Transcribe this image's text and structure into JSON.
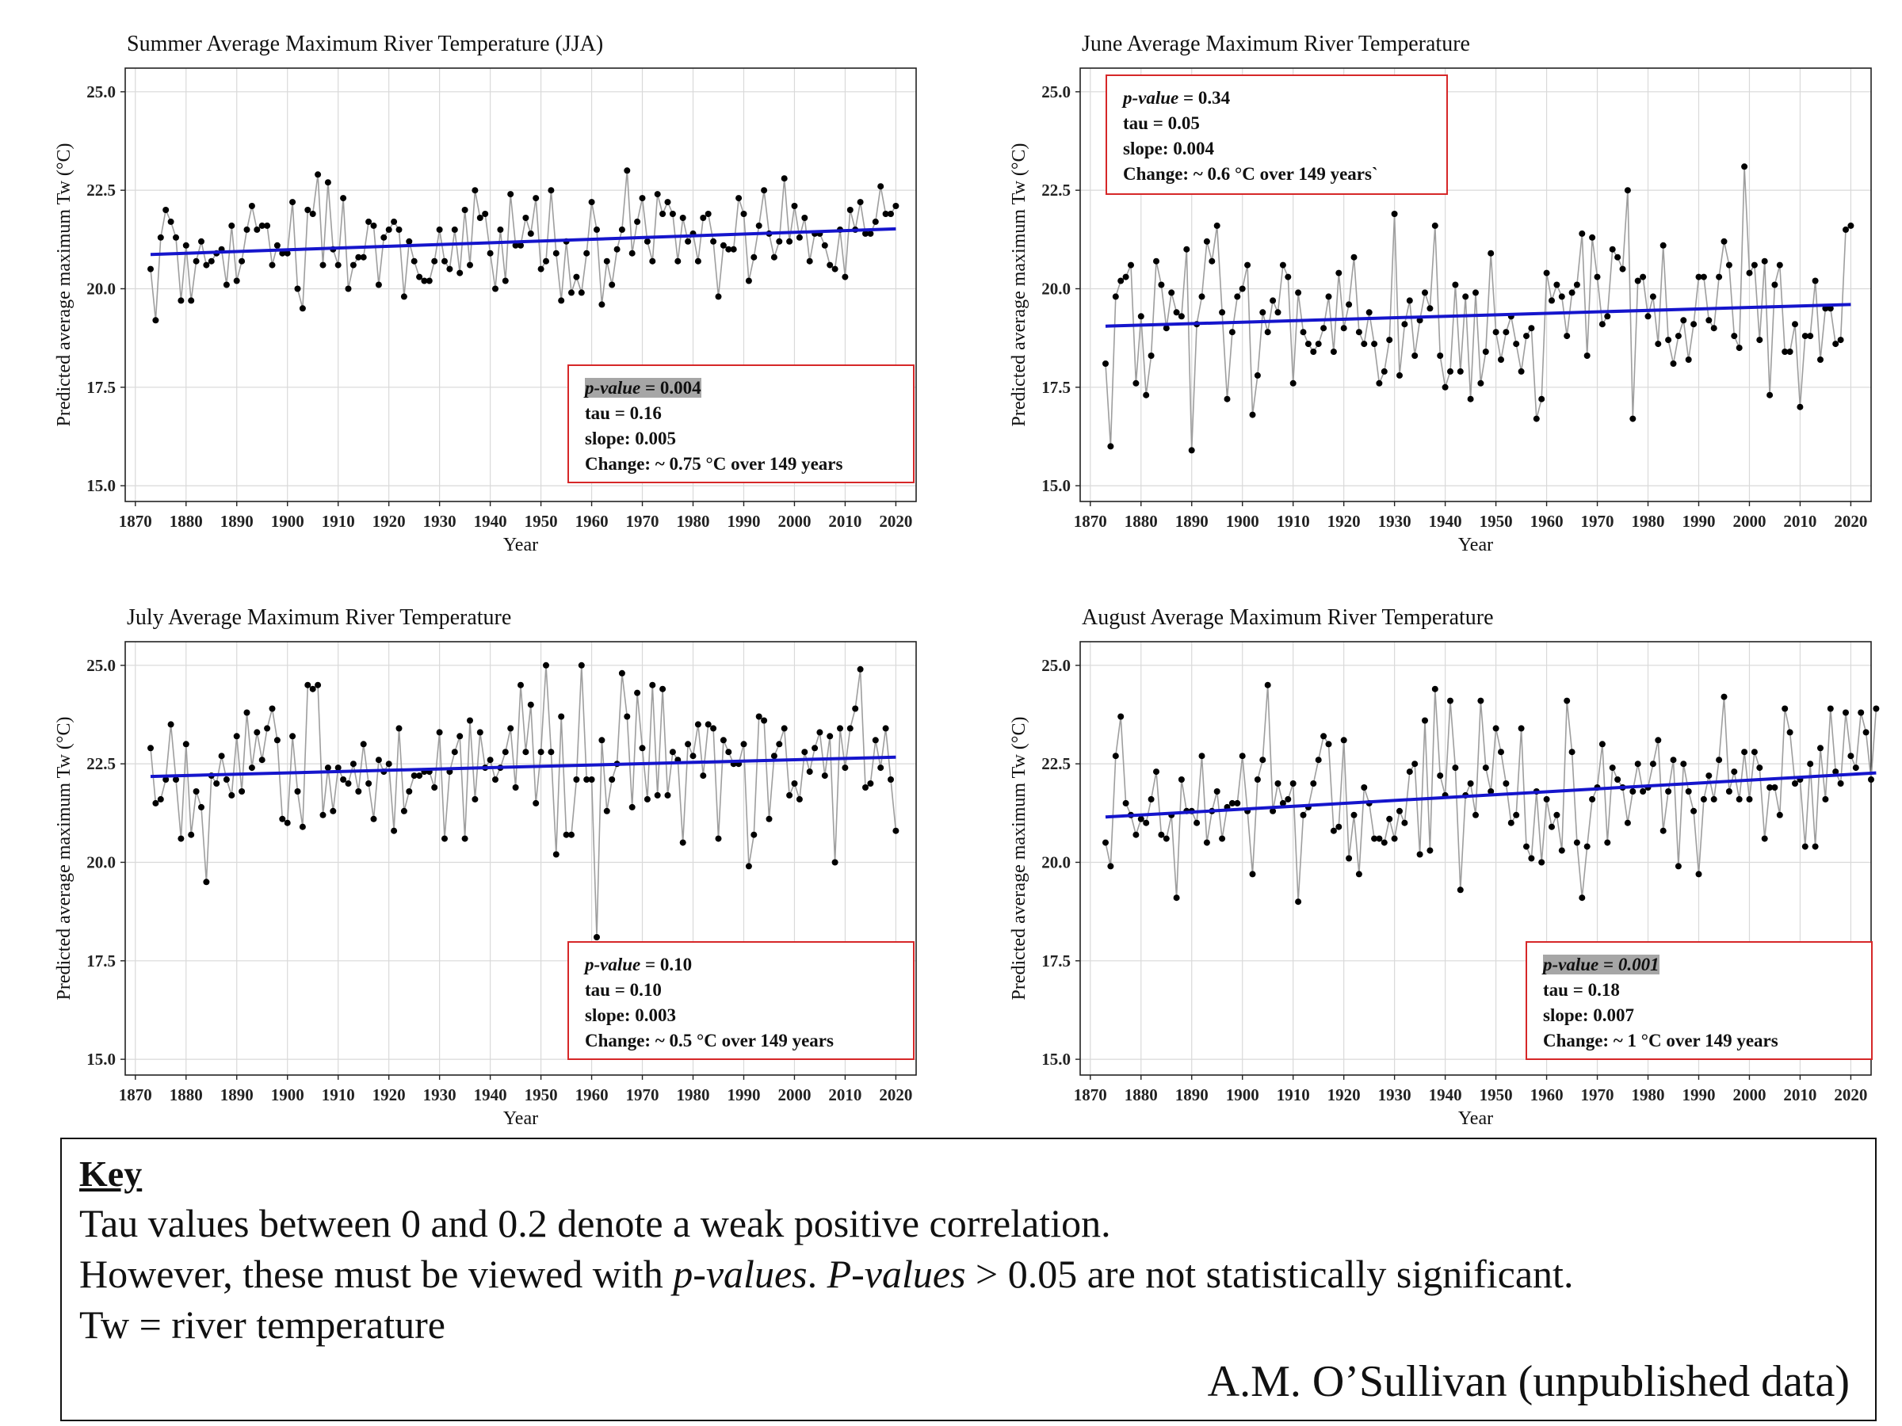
{
  "chart_data": [
    {
      "type": "line",
      "title": "Summer Average Maximum River Temperature (JJA)",
      "xlabel": "Year",
      "ylabel": "Predicted average maximum Tw (°C)",
      "xlim": [
        1868,
        2024
      ],
      "ylim": [
        14.6,
        25.6
      ],
      "xticks": [
        1870,
        1880,
        1890,
        1900,
        1910,
        1920,
        1930,
        1940,
        1950,
        1960,
        1970,
        1980,
        1990,
        2000,
        2010,
        2020
      ],
      "yticks": [
        15.0,
        17.5,
        20.0,
        22.5,
        25.0
      ],
      "grid": true,
      "x_start": 1873,
      "values": [
        20.5,
        19.2,
        21.3,
        22.0,
        21.7,
        21.3,
        19.7,
        21.1,
        19.7,
        20.7,
        21.2,
        20.6,
        20.7,
        20.9,
        21.0,
        20.1,
        21.6,
        20.2,
        20.7,
        21.5,
        22.1,
        21.5,
        21.6,
        21.6,
        20.6,
        21.1,
        20.9,
        20.9,
        22.2,
        20.0,
        19.5,
        22.0,
        21.9,
        22.9,
        20.6,
        22.7,
        21.0,
        20.6,
        22.3,
        20.0,
        20.6,
        20.8,
        20.8,
        21.7,
        21.6,
        20.1,
        21.3,
        21.5,
        21.7,
        21.5,
        19.8,
        21.2,
        20.7,
        20.3,
        20.2,
        20.2,
        20.7,
        21.5,
        20.7,
        20.5,
        21.5,
        20.4,
        22.0,
        20.6,
        22.5,
        21.8,
        21.9,
        20.9,
        20.0,
        21.5,
        20.2,
        22.4,
        21.1,
        21.1,
        21.8,
        21.4,
        22.3,
        20.5,
        20.7,
        22.5,
        20.9,
        19.7,
        21.2,
        19.9,
        20.3,
        19.9,
        20.9,
        22.2,
        21.5,
        19.6,
        20.7,
        20.1,
        21.0,
        21.5,
        23.0,
        20.9,
        21.7,
        22.3,
        21.2,
        20.7,
        22.4,
        21.9,
        22.2,
        21.9,
        20.7,
        21.8,
        21.2,
        21.4,
        20.7,
        21.8,
        21.9,
        21.2,
        19.8,
        21.1,
        21.0,
        21.0,
        22.3,
        21.9,
        20.2,
        20.8,
        21.6,
        22.5,
        21.4,
        20.8,
        21.2,
        22.8,
        21.2,
        22.1,
        21.3,
        21.8,
        20.7,
        21.4,
        21.4,
        21.1,
        20.6,
        20.5,
        21.5,
        20.3,
        22.0,
        21.5,
        22.2,
        21.4,
        21.4,
        21.7,
        22.6,
        21.9,
        21.9,
        22.1
      ],
      "trend": [
        20.87,
        21.52
      ],
      "stats": {
        "pvalue": "0.004",
        "tau": "0.16",
        "slope": "0.005",
        "change": "0.75 °C over 149 years",
        "highlight": true
      }
    },
    {
      "type": "line",
      "title": "June  Average Maximum River Temperature",
      "xlabel": "Year",
      "ylabel": "Predicted average maximum Tw (°C)",
      "xlim": [
        1868,
        2024
      ],
      "ylim": [
        14.6,
        25.6
      ],
      "xticks": [
        1870,
        1880,
        1890,
        1900,
        1910,
        1920,
        1930,
        1940,
        1950,
        1960,
        1970,
        1980,
        1990,
        2000,
        2010,
        2020
      ],
      "yticks": [
        15.0,
        17.5,
        20.0,
        22.5,
        25.0
      ],
      "grid": true,
      "x_start": 1873,
      "values": [
        18.1,
        16.0,
        19.8,
        20.2,
        20.3,
        20.6,
        17.6,
        19.3,
        17.3,
        18.3,
        20.7,
        20.1,
        19.0,
        19.9,
        19.4,
        19.3,
        21.0,
        15.9,
        19.1,
        19.8,
        21.2,
        20.7,
        21.6,
        19.4,
        17.2,
        18.9,
        19.8,
        20.0,
        20.6,
        16.8,
        17.8,
        19.4,
        18.9,
        19.7,
        19.4,
        20.6,
        20.3,
        17.6,
        19.9,
        18.9,
        18.6,
        18.4,
        18.6,
        19.0,
        19.8,
        18.4,
        20.4,
        19.0,
        19.6,
        20.8,
        18.9,
        18.6,
        19.4,
        18.6,
        17.6,
        17.9,
        18.7,
        21.9,
        17.8,
        19.1,
        19.7,
        18.3,
        19.2,
        19.9,
        19.5,
        21.6,
        18.3,
        17.5,
        17.9,
        20.1,
        17.9,
        19.8,
        17.2,
        19.9,
        17.6,
        18.4,
        20.9,
        18.9,
        18.2,
        18.9,
        19.3,
        18.6,
        17.9,
        18.8,
        19.0,
        16.7,
        17.2,
        20.4,
        19.7,
        20.1,
        19.8,
        18.8,
        19.9,
        20.1,
        21.4,
        18.3,
        21.3,
        20.3,
        19.1,
        19.3,
        21.0,
        20.8,
        20.5,
        22.5,
        16.7,
        20.2,
        20.3,
        19.3,
        19.8,
        18.6,
        21.1,
        18.7,
        18.1,
        18.8,
        19.2,
        18.2,
        19.1,
        20.3,
        20.3,
        19.2,
        19.0,
        20.3,
        21.2,
        20.6,
        18.8,
        18.5,
        23.1,
        20.4,
        20.6,
        18.7,
        20.7,
        17.3,
        20.1,
        20.6,
        18.4,
        18.4,
        19.1,
        17.0,
        18.8,
        18.8,
        20.2,
        18.2,
        19.5,
        19.5,
        18.6,
        18.7,
        21.5,
        21.6
      ],
      "trend": [
        19.05,
        19.6
      ],
      "stats": {
        "pvalue": "0.34",
        "tau": "0.05",
        "slope": "0.004",
        "change": "0.6 °C over 149 years`",
        "highlight": false
      }
    },
    {
      "type": "line",
      "title": "July  Average Maximum River Temperature",
      "xlabel": "Year",
      "ylabel": "Predicted average maximum Tw (°C)",
      "xlim": [
        1868,
        2024
      ],
      "ylim": [
        14.6,
        25.6
      ],
      "xticks": [
        1870,
        1880,
        1890,
        1900,
        1910,
        1920,
        1930,
        1940,
        1950,
        1960,
        1970,
        1980,
        1990,
        2000,
        2010,
        2020
      ],
      "yticks": [
        15.0,
        17.5,
        20.0,
        22.5,
        25.0
      ],
      "grid": true,
      "x_start": 1873,
      "values": [
        22.9,
        21.5,
        21.6,
        22.1,
        23.5,
        22.1,
        20.6,
        23.0,
        20.7,
        21.8,
        21.4,
        19.5,
        22.2,
        22.0,
        22.7,
        22.1,
        21.7,
        23.2,
        21.8,
        23.8,
        22.4,
        23.3,
        22.6,
        23.4,
        23.9,
        23.1,
        21.1,
        21.0,
        23.2,
        21.8,
        20.9,
        24.5,
        24.4,
        24.5,
        21.2,
        22.4,
        21.3,
        22.4,
        22.1,
        22.0,
        22.5,
        21.8,
        23.0,
        22.0,
        21.1,
        22.6,
        22.3,
        22.5,
        20.8,
        23.4,
        21.3,
        21.8,
        22.2,
        22.2,
        22.3,
        22.3,
        21.9,
        23.3,
        20.6,
        22.3,
        22.8,
        23.2,
        20.6,
        23.6,
        21.6,
        23.3,
        22.4,
        22.6,
        22.1,
        22.4,
        22.8,
        23.4,
        21.9,
        24.5,
        22.8,
        24.0,
        21.5,
        22.8,
        25.0,
        22.8,
        20.2,
        23.7,
        20.7,
        20.7,
        22.1,
        25.0,
        22.1,
        22.1,
        18.1,
        23.1,
        21.3,
        22.1,
        22.5,
        24.8,
        23.7,
        21.4,
        24.3,
        22.9,
        21.6,
        24.5,
        21.7,
        24.4,
        21.7,
        22.8,
        22.6,
        20.5,
        23.0,
        22.7,
        23.5,
        22.2,
        23.5,
        23.4,
        20.6,
        23.1,
        22.8,
        22.5,
        22.5,
        23.0,
        19.9,
        20.7,
        23.7,
        23.6,
        21.1,
        22.7,
        23.0,
        23.4,
        21.7,
        22.0,
        21.6,
        22.8,
        22.3,
        22.9,
        23.3,
        22.2,
        23.2,
        20.0,
        23.4,
        22.4,
        23.4,
        23.9,
        24.9,
        21.9,
        22.0,
        23.1,
        22.4,
        23.4,
        22.1,
        20.8
      ],
      "trend": [
        22.18,
        22.67
      ],
      "stats": {
        "pvalue": "0.10",
        "tau": "0.10",
        "slope": "0.003",
        "change": "0.5 °C over 149 years",
        "highlight": false
      }
    },
    {
      "type": "line",
      "title": "August  Average Maximum River Temperature",
      "xlabel": "Year",
      "ylabel": "Predicted average maximum Tw (°C)",
      "xlim": [
        1868,
        2024
      ],
      "ylim": [
        14.6,
        25.6
      ],
      "xticks": [
        1870,
        1880,
        1890,
        1900,
        1910,
        1920,
        1930,
        1940,
        1950,
        1960,
        1970,
        1980,
        1990,
        2000,
        2010,
        2020
      ],
      "yticks": [
        15.0,
        17.5,
        20.0,
        22.5,
        25.0
      ],
      "grid": true,
      "x_start": 1873,
      "values": [
        20.5,
        19.9,
        22.7,
        23.7,
        21.5,
        21.2,
        20.7,
        21.1,
        21.0,
        21.6,
        22.3,
        20.7,
        20.6,
        21.2,
        19.1,
        22.1,
        21.3,
        21.3,
        21.0,
        22.7,
        20.5,
        21.3,
        21.8,
        20.6,
        21.4,
        21.5,
        21.5,
        22.7,
        21.3,
        19.7,
        22.1,
        22.6,
        24.5,
        21.3,
        22.0,
        21.5,
        21.6,
        22.0,
        19.0,
        21.2,
        21.4,
        22.0,
        22.6,
        23.2,
        23.0,
        20.8,
        20.9,
        23.1,
        20.1,
        21.2,
        19.7,
        21.9,
        21.5,
        20.6,
        20.6,
        20.5,
        21.1,
        20.6,
        21.3,
        21.0,
        22.3,
        22.5,
        20.2,
        23.6,
        20.3,
        24.4,
        22.2,
        21.7,
        24.1,
        22.4,
        19.3,
        21.7,
        22.0,
        21.2,
        24.1,
        22.4,
        21.8,
        23.4,
        22.8,
        22.0,
        21.0,
        21.2,
        23.4,
        20.4,
        20.1,
        21.8,
        20.0,
        21.6,
        20.9,
        21.2,
        20.3,
        24.1,
        22.8,
        20.5,
        19.1,
        20.4,
        21.6,
        21.9,
        23.0,
        20.5,
        22.4,
        22.1,
        21.9,
        21.0,
        21.8,
        22.5,
        21.8,
        21.9,
        22.5,
        23.1,
        20.8,
        21.8,
        22.6,
        19.9,
        22.5,
        21.8,
        21.3,
        19.7,
        21.6,
        22.2,
        21.6,
        22.6,
        24.2,
        21.8,
        22.3,
        21.6,
        22.8,
        21.6,
        22.8,
        22.4,
        20.6,
        21.9,
        21.9,
        21.2,
        23.9,
        23.3,
        22.0,
        22.1,
        20.4,
        22.5,
        20.4,
        22.9,
        21.6,
        23.9,
        22.3,
        22.0,
        23.8,
        22.7,
        22.4,
        23.8,
        23.3,
        22.1,
        23.9
      ],
      "trend": [
        21.15,
        22.27
      ],
      "stats": {
        "pvalue": "0.001",
        "tau": "0.18",
        "slope": "0.007",
        "change": "1 °C over 149 years",
        "highlight": true
      }
    }
  ],
  "stats_labels": {
    "pvalue_label": "p-value",
    "eq": " = ",
    "tau_label": "tau = ",
    "slope_label": "slope: ",
    "change_label": "Change: ~ "
  },
  "key": {
    "title": "Key",
    "line1": "Tau values between 0 and 0.2 denote a weak positive correlation.",
    "line2_a": "However, these must be viewed with ",
    "line2_b": "p-values",
    "line2_c": ".  ",
    "line2_d": "P-values",
    "line2_e": " > 0.05 are not statistically significant.",
    "line3": "Tw = river temperature",
    "credit": "A.M. O’Sullivan (unpublished data)"
  },
  "colors": {
    "trend": "#1515cc",
    "series_line": "#9e9e9e",
    "points": "#000000",
    "box_border": "#d62728",
    "grid": "#d9d9d9"
  }
}
